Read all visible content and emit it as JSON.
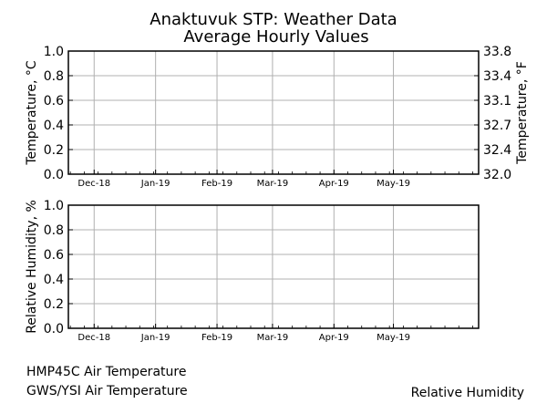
{
  "figure": {
    "title_line1": "Anaktuvuk STP: Weather Data",
    "title_line2": "Average Hourly Values"
  },
  "legend": {
    "hmp45c": "HMP45C Air Temperature",
    "gws": "GWS/YSI Air Temperature",
    "rh": "Relative Humidity"
  },
  "chart_data": [
    {
      "type": "line",
      "panel": "temperature",
      "ylabel": "Temperature, °C",
      "ylabel_right": "Temperature, °F",
      "ylim": [
        0.0,
        1.0
      ],
      "yticks": [
        "0.0",
        "0.2",
        "0.4",
        "0.6",
        "0.8",
        "1.0"
      ],
      "yticks_right": [
        "32.0",
        "32.4",
        "32.7",
        "33.1",
        "33.4",
        "33.8"
      ],
      "xlim": [
        "2018-11-18",
        "2019-06-13"
      ],
      "xticks": [
        {
          "label": "Dec-18",
          "date": "2018-12-01"
        },
        {
          "label": "Jan-19",
          "date": "2019-01-01"
        },
        {
          "label": "Feb-19",
          "date": "2019-02-01"
        },
        {
          "label": "Mar-19",
          "date": "2019-03-01"
        },
        {
          "label": "Apr-19",
          "date": "2019-04-01"
        },
        {
          "label": "May-19",
          "date": "2019-05-01"
        }
      ],
      "grid": true,
      "series": []
    },
    {
      "type": "line",
      "panel": "humidity",
      "ylabel": "Relative Humidity, %",
      "ylim": [
        0.0,
        1.0
      ],
      "yticks": [
        "0.0",
        "0.2",
        "0.4",
        "0.6",
        "0.8",
        "1.0"
      ],
      "xlim": [
        "2018-11-18",
        "2019-06-13"
      ],
      "xticks": [
        {
          "label": "Dec-18",
          "date": "2018-12-01"
        },
        {
          "label": "Jan-19",
          "date": "2019-01-01"
        },
        {
          "label": "Feb-19",
          "date": "2019-02-01"
        },
        {
          "label": "Mar-19",
          "date": "2019-03-01"
        },
        {
          "label": "Apr-19",
          "date": "2019-04-01"
        },
        {
          "label": "May-19",
          "date": "2019-05-01"
        }
      ],
      "grid": true,
      "series": []
    }
  ]
}
